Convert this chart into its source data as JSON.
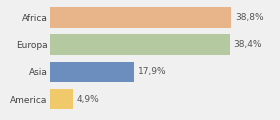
{
  "categories": [
    "America",
    "Asia",
    "Europa",
    "Africa"
  ],
  "values": [
    4.9,
    17.9,
    38.4,
    38.8
  ],
  "labels": [
    "4,9%",
    "17,9%",
    "38,4%",
    "38,8%"
  ],
  "bar_colors": [
    "#f0c96a",
    "#6b8ebf",
    "#b5c9a0",
    "#e8b48a"
  ],
  "xlim": [
    0,
    48
  ],
  "background_color": "#f0f0f0",
  "label_fontsize": 6.5,
  "tick_fontsize": 6.5,
  "bar_height": 0.75
}
